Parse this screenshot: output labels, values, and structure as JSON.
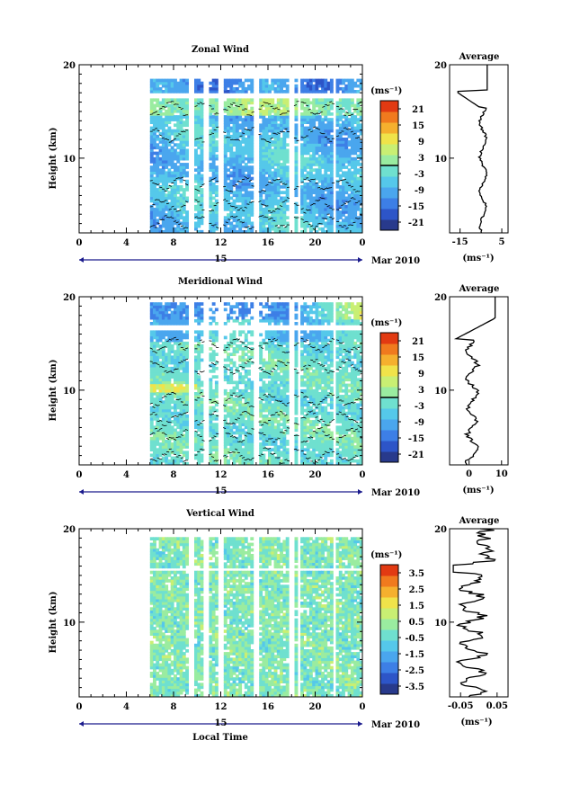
{
  "figure": {
    "date_label": "Mar 2010",
    "day_label": "15",
    "xlabel": "Local Time",
    "units": "(ms⁻¹)"
  },
  "chart_data": [
    {
      "type": "heatmap",
      "title": "Zonal Wind",
      "ylabel": "Height (km)",
      "xlabel": "",
      "x_ticks": [
        "0",
        "4",
        "8",
        "12",
        "16",
        "20",
        "0"
      ],
      "xlim": [
        0,
        24
      ],
      "ylim": [
        2,
        20
      ],
      "y_ticks": [
        "10",
        "20"
      ],
      "data_start_hour": 6,
      "data_top_km": 18.5,
      "colorbar": {
        "ticks": [
          "21",
          "15",
          "9",
          "3",
          "-3",
          "-9",
          "-15",
          "-21"
        ],
        "range": [
          -24,
          24
        ],
        "zero_line": true
      },
      "field": "zonal",
      "average": {
        "title": "Average",
        "xlim": [
          -20,
          8
        ],
        "x_ticks": [
          "-15",
          "5"
        ],
        "xunit": "(ms⁻¹)"
      }
    },
    {
      "type": "heatmap",
      "title": "Meridional Wind",
      "ylabel": "Height (km)",
      "xlabel": "",
      "x_ticks": [
        "0",
        "4",
        "8",
        "12",
        "16",
        "20",
        "0"
      ],
      "xlim": [
        0,
        24
      ],
      "ylim": [
        2,
        20
      ],
      "y_ticks": [
        "10",
        "20"
      ],
      "data_start_hour": 6,
      "data_top_km": 19.2,
      "colorbar": {
        "ticks": [
          "21",
          "15",
          "9",
          "3",
          "-3",
          "-9",
          "-15",
          "-21"
        ],
        "range": [
          -24,
          24
        ],
        "zero_line": true
      },
      "field": "meridional",
      "average": {
        "title": "Average",
        "xlim": [
          -6,
          12
        ],
        "x_ticks": [
          "0",
          "10"
        ],
        "xunit": "(ms⁻¹)"
      }
    },
    {
      "type": "heatmap",
      "title": "Vertical Wind",
      "ylabel": "Height (km)",
      "xlabel": "Local Time",
      "x_ticks": [
        "0",
        "4",
        "8",
        "12",
        "16",
        "20",
        "0"
      ],
      "xlim": [
        0,
        24
      ],
      "ylim": [
        2,
        20
      ],
      "y_ticks": [
        "10",
        "20"
      ],
      "data_start_hour": 6,
      "data_top_km": 19.0,
      "colorbar": {
        "ticks": [
          "3.5",
          "2.5",
          "1.5",
          "0.5",
          "-0.5",
          "-1.5",
          "-2.5",
          "-3.5"
        ],
        "range": [
          -4,
          4
        ],
        "zero_line": false
      },
      "field": "vertical",
      "average": {
        "title": "Average",
        "xlim": [
          -0.08,
          0.08
        ],
        "x_ticks": [
          "-0.05",
          "0.05"
        ],
        "xunit": "(ms⁻¹)"
      }
    }
  ],
  "colors": {
    "scale": [
      "#283a8c",
      "#2d55c8",
      "#3d7fe6",
      "#4aa6ee",
      "#55c8ea",
      "#6fe0cf",
      "#9aeca0",
      "#c9ef73",
      "#f0e34a",
      "#f5b02e",
      "#f07a1e",
      "#e23a12"
    ]
  }
}
